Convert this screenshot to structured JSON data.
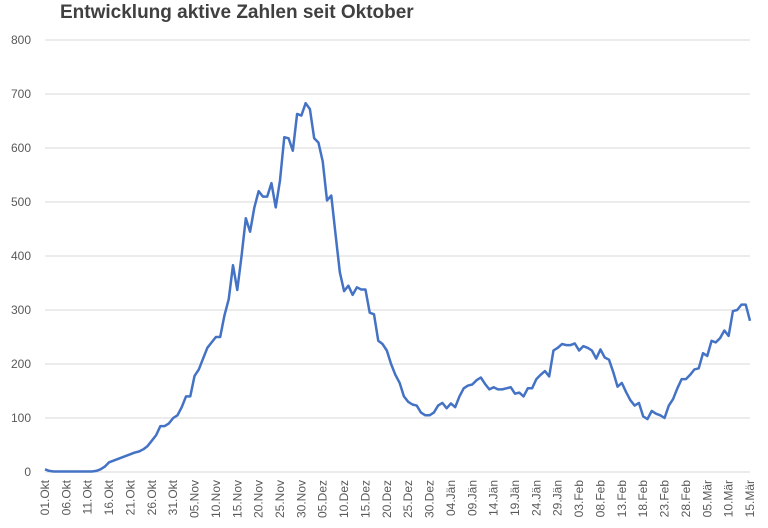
{
  "chart_data": {
    "type": "line",
    "title": "Entwicklung aktive Zahlen seit Oktober",
    "categories": [
      "01.Okt",
      null,
      null,
      null,
      null,
      "06.Okt",
      null,
      null,
      null,
      null,
      "11.Okt",
      null,
      null,
      null,
      null,
      "16.Okt",
      null,
      null,
      null,
      null,
      "21.Okt",
      null,
      null,
      null,
      null,
      "26.Okt",
      null,
      null,
      null,
      null,
      "31.Okt",
      null,
      null,
      null,
      null,
      "05.Nov",
      null,
      null,
      null,
      null,
      "10.Nov",
      null,
      null,
      null,
      null,
      "15.Nov",
      null,
      null,
      null,
      null,
      "20.Nov",
      null,
      null,
      null,
      null,
      "25.Nov",
      null,
      null,
      null,
      null,
      "30.Nov",
      null,
      null,
      null,
      null,
      "05.Dez",
      null,
      null,
      null,
      null,
      "10.Dez",
      null,
      null,
      null,
      null,
      "15.Dez",
      null,
      null,
      null,
      null,
      "20.Dez",
      null,
      null,
      null,
      null,
      "25.Dez",
      null,
      null,
      null,
      null,
      "30.Dez",
      null,
      null,
      null,
      null,
      "04.Jän",
      null,
      null,
      null,
      null,
      "09.Jän",
      null,
      null,
      null,
      null,
      "14.Jän",
      null,
      null,
      null,
      null,
      "19.Jän",
      null,
      null,
      null,
      null,
      "24.Jän",
      null,
      null,
      null,
      null,
      "29.Jän",
      null,
      null,
      null,
      null,
      "03.Feb",
      null,
      null,
      null,
      null,
      "08.Feb",
      null,
      null,
      null,
      null,
      "13.Feb",
      null,
      null,
      null,
      null,
      "18.Feb",
      null,
      null,
      null,
      null,
      "23.Feb",
      null,
      null,
      null,
      null,
      "28.Feb",
      null,
      null,
      null,
      null,
      "05.Mär",
      null,
      null,
      null,
      null,
      "10.Mär",
      null,
      null,
      null,
      null,
      "15.Mär"
    ],
    "series": [
      {
        "color": "#4472c4",
        "values": [
          5,
          2,
          1,
          1,
          1,
          1,
          1,
          1,
          1,
          1,
          1,
          1,
          2,
          5,
          10,
          18,
          21,
          24,
          27,
          30,
          33,
          36,
          38,
          42,
          48,
          58,
          68,
          85,
          85,
          90,
          100,
          105,
          120,
          140,
          140,
          178,
          190,
          210,
          230,
          240,
          250,
          250,
          290,
          320,
          383,
          337,
          400,
          470,
          445,
          490,
          520,
          510,
          510,
          535,
          490,
          540,
          620,
          618,
          595,
          663,
          660,
          683,
          672,
          618,
          610,
          575,
          503,
          512,
          440,
          370,
          335,
          345,
          328,
          342,
          338,
          338,
          295,
          292,
          243,
          237,
          225,
          200,
          180,
          165,
          140,
          130,
          125,
          123,
          110,
          105,
          105,
          110,
          123,
          128,
          118,
          127,
          120,
          140,
          155,
          160,
          162,
          170,
          175,
          163,
          153,
          157,
          153,
          153,
          155,
          157,
          145,
          147,
          140,
          155,
          155,
          172,
          180,
          187,
          177,
          225,
          230,
          237,
          235,
          235,
          238,
          225,
          233,
          230,
          225,
          210,
          227,
          212,
          208,
          185,
          158,
          165,
          148,
          133,
          123,
          128,
          103,
          98,
          113,
          108,
          105,
          100,
          123,
          135,
          155,
          172,
          172,
          180,
          190,
          192,
          220,
          215,
          243,
          240,
          248,
          262,
          252,
          298,
          300,
          310,
          310,
          280
        ]
      }
    ],
    "ylim": [
      0,
      800
    ],
    "yticks": [
      0,
      100,
      200,
      300,
      400,
      500,
      600,
      700,
      800
    ],
    "grid": true
  }
}
